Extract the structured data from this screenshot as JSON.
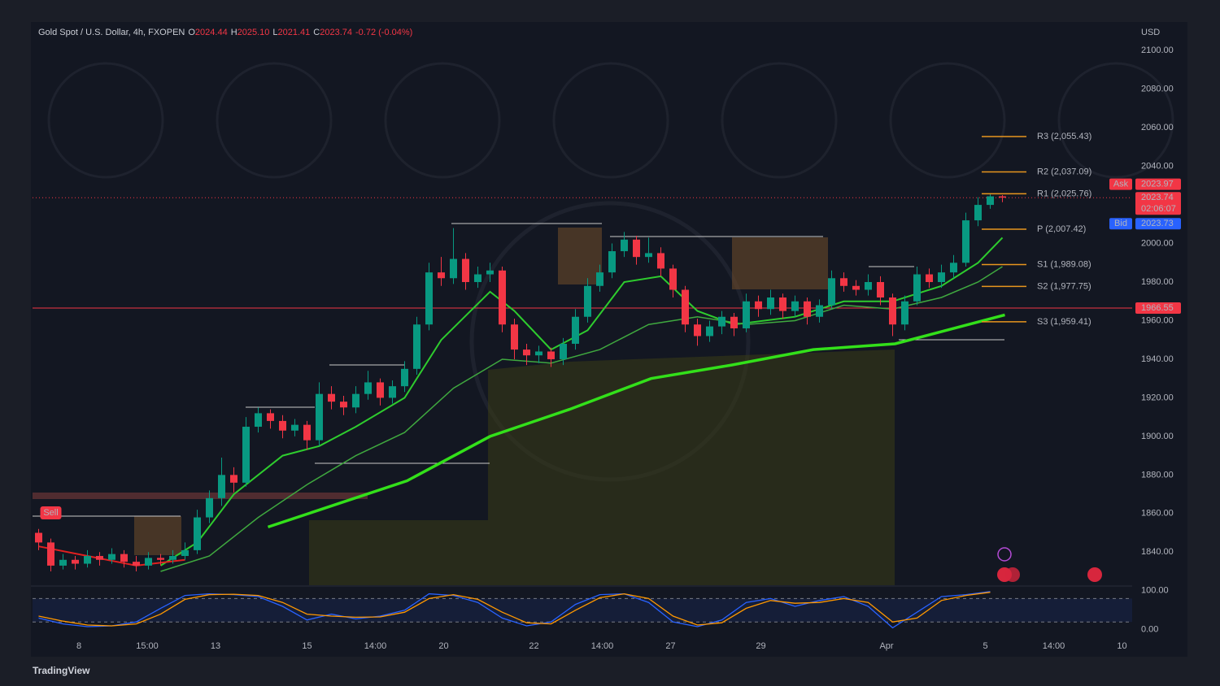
{
  "chart_data": {
    "type": "candlestick",
    "title": "Gold Spot / U.S. Dollar, 4h, FXOPEN",
    "header": [
      {
        "key": "O",
        "text": "2024.44"
      },
      {
        "key": "H",
        "text": "2025.10"
      },
      {
        "key": "L",
        "text": "2021.41"
      },
      {
        "key": "C",
        "text": "2023.74"
      }
    ],
    "change": "-0.72 (-0.04%)",
    "currency": "USD",
    "xlim": [
      -0.5,
      89.5
    ],
    "ylim": [
      1822,
      2114
    ],
    "yticks": [
      {
        "value": 1840,
        "label": "1840.00"
      },
      {
        "value": 1860,
        "label": "1860.00"
      },
      {
        "value": 1880,
        "label": "1880.00"
      },
      {
        "value": 1900,
        "label": "1900.00"
      },
      {
        "value": 1920,
        "label": "1920.00"
      },
      {
        "value": 1940,
        "label": "1940.00"
      },
      {
        "value": 1960,
        "label": "1960.00"
      },
      {
        "value": 1980,
        "label": "1980.00"
      },
      {
        "value": 2000,
        "label": "2000.00"
      },
      {
        "value": 2020,
        "label": "2020.00"
      },
      {
        "value": 2040,
        "label": "2040.00"
      },
      {
        "value": 2060,
        "label": "2060.00"
      },
      {
        "value": 2080,
        "label": "2080.00"
      },
      {
        "value": 2100,
        "label": "2100.00"
      }
    ],
    "xticks": [
      {
        "value": 3.3,
        "label": "8"
      },
      {
        "value": 8.9,
        "label": "15:00"
      },
      {
        "value": 14.5,
        "label": "13"
      },
      {
        "value": 22,
        "label": "15"
      },
      {
        "value": 27.6,
        "label": "14:00"
      },
      {
        "value": 33.2,
        "label": "20"
      },
      {
        "value": 40.6,
        "label": "22"
      },
      {
        "value": 46.2,
        "label": "14:00"
      },
      {
        "value": 51.8,
        "label": "27"
      },
      {
        "value": 59.2,
        "label": "29"
      },
      {
        "value": 69.5,
        "label": "Apr"
      },
      {
        "value": 77.6,
        "label": "5"
      },
      {
        "value": 83.2,
        "label": "14:00"
      },
      {
        "value": 88.8,
        "label": "10"
      }
    ],
    "grid": false,
    "up_color": "#089981",
    "down_color": "#f23645",
    "ohlc": [
      [
        1850,
        1852,
        1841,
        1845
      ],
      [
        1845,
        1847,
        1830,
        1833
      ],
      [
        1833,
        1839,
        1831,
        1836
      ],
      [
        1836,
        1838,
        1831,
        1834
      ],
      [
        1834,
        1841,
        1832,
        1838
      ],
      [
        1838,
        1840,
        1833,
        1836
      ],
      [
        1836,
        1842,
        1834,
        1839
      ],
      [
        1839,
        1841,
        1832,
        1835
      ],
      [
        1835,
        1838,
        1830,
        1833
      ],
      [
        1833,
        1840,
        1831,
        1837
      ],
      [
        1837,
        1839,
        1833,
        1836
      ],
      [
        1836,
        1841,
        1834,
        1838
      ],
      [
        1838,
        1845,
        1836,
        1841
      ],
      [
        1841,
        1862,
        1839,
        1858
      ],
      [
        1858,
        1872,
        1855,
        1868
      ],
      [
        1868,
        1889,
        1864,
        1880
      ],
      [
        1880,
        1884,
        1871,
        1876
      ],
      [
        1876,
        1910,
        1874,
        1905
      ],
      [
        1905,
        1915,
        1902,
        1912
      ],
      [
        1912,
        1914,
        1904,
        1908
      ],
      [
        1908,
        1911,
        1899,
        1903
      ],
      [
        1903,
        1909,
        1900,
        1906
      ],
      [
        1906,
        1908,
        1893,
        1898
      ],
      [
        1898,
        1928,
        1895,
        1922
      ],
      [
        1922,
        1926,
        1914,
        1918
      ],
      [
        1918,
        1921,
        1911,
        1915
      ],
      [
        1915,
        1926,
        1912,
        1922
      ],
      [
        1922,
        1934,
        1919,
        1928
      ],
      [
        1928,
        1930,
        1916,
        1920
      ],
      [
        1920,
        1929,
        1917,
        1926
      ],
      [
        1926,
        1939,
        1923,
        1935
      ],
      [
        1935,
        1962,
        1932,
        1958
      ],
      [
        1958,
        1990,
        1955,
        1985
      ],
      [
        1985,
        1993,
        1978,
        1982
      ],
      [
        1982,
        2008,
        1979,
        1992
      ],
      [
        1992,
        1995,
        1976,
        1980
      ],
      [
        1980,
        1988,
        1977,
        1984
      ],
      [
        1984,
        1990,
        1980,
        1986
      ],
      [
        1986,
        1988,
        1954,
        1958
      ],
      [
        1958,
        1961,
        1940,
        1945
      ],
      [
        1945,
        1948,
        1937,
        1942
      ],
      [
        1942,
        1947,
        1938,
        1944
      ],
      [
        1944,
        1946,
        1936,
        1940
      ],
      [
        1940,
        1951,
        1937,
        1948
      ],
      [
        1948,
        1966,
        1945,
        1962
      ],
      [
        1962,
        1982,
        1959,
        1978
      ],
      [
        1978,
        1989,
        1975,
        1985
      ],
      [
        1985,
        2000,
        1982,
        1996
      ],
      [
        1996,
        2006,
        1993,
        2002
      ],
      [
        2002,
        2004,
        1989,
        1993
      ],
      [
        1993,
        2003,
        1990,
        1995
      ],
      [
        1995,
        1998,
        1983,
        1987
      ],
      [
        1987,
        1989,
        1972,
        1976
      ],
      [
        1976,
        1978,
        1954,
        1958
      ],
      [
        1958,
        1961,
        1947,
        1952
      ],
      [
        1952,
        1960,
        1949,
        1957
      ],
      [
        1957,
        1965,
        1953,
        1962
      ],
      [
        1962,
        1964,
        1952,
        1956
      ],
      [
        1956,
        1974,
        1954,
        1970
      ],
      [
        1970,
        1973,
        1962,
        1966
      ],
      [
        1966,
        1976,
        1963,
        1972
      ],
      [
        1972,
        1974,
        1961,
        1965
      ],
      [
        1965,
        1973,
        1962,
        1970
      ],
      [
        1970,
        1972,
        1958,
        1962
      ],
      [
        1962,
        1971,
        1959,
        1968
      ],
      [
        1968,
        1986,
        1966,
        1982
      ],
      [
        1982,
        1985,
        1975,
        1978
      ],
      [
        1978,
        1981,
        1973,
        1976
      ],
      [
        1976,
        1984,
        1973,
        1980
      ],
      [
        1980,
        1983,
        1968,
        1972
      ],
      [
        1972,
        1974,
        1952,
        1958
      ],
      [
        1958,
        1973,
        1955,
        1970
      ],
      [
        1970,
        1988,
        1968,
        1984
      ],
      [
        1984,
        1987,
        1977,
        1980
      ],
      [
        1980,
        1989,
        1977,
        1985
      ],
      [
        1985,
        1994,
        1982,
        1990
      ],
      [
        1990,
        2016,
        1988,
        2012
      ],
      [
        2012,
        2024,
        2009,
        2020
      ],
      [
        2020,
        2026,
        2018,
        2024.44
      ],
      [
        2024.44,
        2025.1,
        2021.41,
        2023.74
      ]
    ],
    "lines": [
      {
        "color": "#33e01a",
        "width": 3.5,
        "x": [
          18.8,
          30.2,
          37,
          43.5,
          50.2,
          56.8,
          63.5,
          70.2,
          79.2
        ],
        "values": [
          1853,
          1877,
          1900,
          1914,
          1930,
          1937,
          1945,
          1948,
          1963
        ]
      },
      {
        "color": "#2ecc2e",
        "width": 2,
        "x": [
          10,
          13,
          16,
          20,
          23,
          26,
          30,
          33,
          37,
          39,
          42,
          45,
          48,
          51,
          54,
          57,
          62,
          66,
          70,
          74,
          77,
          79
        ],
        "values": [
          1833,
          1845,
          1870,
          1890,
          1895,
          1905,
          1920,
          1950,
          1975,
          1965,
          1945,
          1955,
          1980,
          1983,
          1965,
          1958,
          1962,
          1970,
          1970,
          1978,
          1990,
          2003
        ]
      },
      {
        "color": "#3fa83f",
        "width": 1.5,
        "x": [
          10,
          14,
          18,
          22,
          26,
          30,
          34,
          38,
          42,
          46,
          50,
          54,
          58,
          62,
          66,
          70,
          74,
          77,
          79
        ],
        "values": [
          1830,
          1838,
          1858,
          1875,
          1890,
          1902,
          1925,
          1940,
          1938,
          1945,
          1958,
          1962,
          1958,
          1960,
          1968,
          1966,
          1972,
          1980,
          1988
        ]
      },
      {
        "color": "#e02020",
        "width": 2,
        "x": [
          0,
          4,
          8,
          12
        ],
        "values": [
          1843,
          1838,
          1833,
          1836
        ]
      }
    ],
    "pivots": [
      {
        "value": 2055.43,
        "label": "R3 (2,055.43)"
      },
      {
        "value": 2037.09,
        "label": "R2 (2,037.09)"
      },
      {
        "value": 2025.76,
        "label": "R1 (2,025.76)"
      },
      {
        "value": 2007.42,
        "label": "P (2,007.42)"
      },
      {
        "value": 1989.08,
        "label": "S1 (1,989.08)"
      },
      {
        "value": 1977.75,
        "label": "S2 (1,977.75)"
      },
      {
        "value": 1959.41,
        "label": "S3 (1,959.41)"
      }
    ],
    "pivot_color": "#e8961e",
    "hline": {
      "value": 1966.55,
      "color": "#f23645"
    },
    "last": {
      "value": 2023.74,
      "timer": "02:06:07",
      "color": "#f23645"
    },
    "ask": {
      "name": "Ask",
      "value": 2023.97,
      "color": "#f23645"
    },
    "bid": {
      "name": "Bid",
      "value": 2023.73,
      "color": "#2962ff"
    },
    "signal": {
      "label": "Sell",
      "at": 1
    },
    "oscillator": {
      "ylim": [
        -15,
        110
      ],
      "yticks": [
        {
          "value": 100,
          "label": "100.00"
        },
        {
          "value": 0,
          "label": "0.00"
        }
      ],
      "bands": [
        20,
        80
      ],
      "x": [
        0,
        2,
        4,
        6,
        8,
        10,
        12,
        14,
        16,
        18,
        20,
        22,
        24,
        26,
        28,
        30,
        32,
        34,
        36,
        38,
        40,
        42,
        44,
        46,
        48,
        50,
        52,
        54,
        56,
        58,
        60,
        62,
        64,
        66,
        68,
        70,
        72,
        74,
        76,
        78
      ],
      "series": [
        {
          "color": "#2962ff",
          "values": [
            30,
            15,
            8,
            10,
            20,
            55,
            88,
            92,
            90,
            85,
            60,
            25,
            40,
            28,
            35,
            50,
            92,
            88,
            70,
            30,
            10,
            20,
            65,
            90,
            92,
            70,
            20,
            8,
            25,
            70,
            80,
            60,
            75,
            85,
            60,
            5,
            45,
            85,
            90,
            98
          ]
        },
        {
          "color": "#ff9800",
          "values": [
            35,
            22,
            12,
            10,
            15,
            40,
            78,
            90,
            91,
            88,
            70,
            40,
            35,
            32,
            33,
            45,
            80,
            90,
            78,
            45,
            18,
            15,
            50,
            82,
            92,
            80,
            35,
            12,
            18,
            55,
            75,
            68,
            70,
            80,
            70,
            20,
            30,
            75,
            88,
            96
          ]
        }
      ]
    }
  },
  "footer": {
    "brand": "TradingView"
  }
}
